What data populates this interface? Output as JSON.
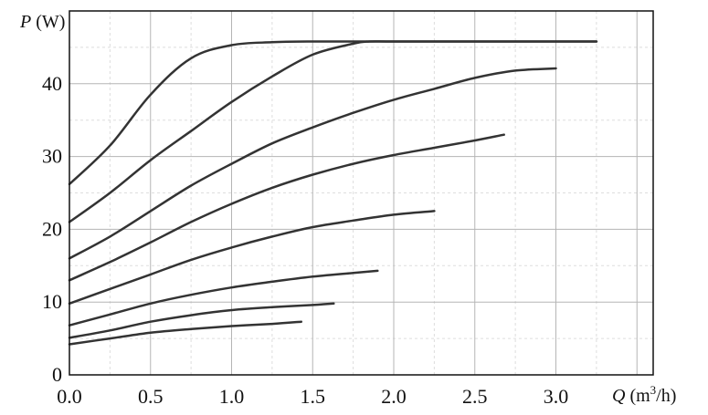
{
  "chart_data": {
    "type": "line",
    "title": "",
    "xlabel": {
      "var": "Q",
      "unit_pre": " (m",
      "unit_sup": "3",
      "unit_post": "/h)"
    },
    "ylabel": {
      "var": "P",
      "unit": " (W)"
    },
    "xlim": [
      0,
      3.6
    ],
    "ylim": [
      0,
      50
    ],
    "x_ticks": [
      0.0,
      0.5,
      1.0,
      1.5,
      2.0,
      2.5,
      3.0
    ],
    "x_tick_labels": [
      "0.0",
      "0.5",
      "1.0",
      "1.5",
      "2.0",
      "2.5",
      "3.0"
    ],
    "y_ticks": [
      0,
      10,
      20,
      30,
      40
    ],
    "y_tick_labels": [
      "0",
      "10",
      "20",
      "30",
      "40"
    ],
    "grid": true,
    "series": [
      {
        "x": [
          0,
          0.25,
          0.5,
          0.75,
          1.0,
          1.25,
          1.5,
          1.75,
          2.0,
          2.5,
          3.0,
          3.25
        ],
        "values": [
          26.2,
          31.5,
          38.5,
          43.5,
          45.3,
          45.7,
          45.8,
          45.8,
          45.8,
          45.8,
          45.8,
          45.8
        ]
      },
      {
        "x": [
          0,
          0.25,
          0.5,
          0.75,
          1.0,
          1.25,
          1.5,
          1.75,
          1.85,
          2.0,
          2.5,
          3.0,
          3.25
        ],
        "values": [
          21.0,
          25.0,
          29.5,
          33.5,
          37.5,
          41.0,
          44.0,
          45.5,
          45.8,
          45.8,
          45.8,
          45.8,
          45.8
        ]
      },
      {
        "x": [
          0,
          0.25,
          0.5,
          0.75,
          1.0,
          1.25,
          1.5,
          1.75,
          2.0,
          2.25,
          2.5,
          2.75,
          3.0
        ],
        "values": [
          16.0,
          19.0,
          22.5,
          26.0,
          29.0,
          31.8,
          34.0,
          36.0,
          37.8,
          39.3,
          40.8,
          41.8,
          42.1
        ]
      },
      {
        "x": [
          0,
          0.25,
          0.5,
          0.75,
          1.0,
          1.25,
          1.5,
          1.75,
          2.0,
          2.25,
          2.5,
          2.68
        ],
        "values": [
          13.0,
          15.5,
          18.2,
          21.0,
          23.5,
          25.7,
          27.5,
          29.0,
          30.2,
          31.2,
          32.2,
          33.0
        ]
      },
      {
        "x": [
          0,
          0.25,
          0.5,
          0.75,
          1.0,
          1.25,
          1.5,
          1.75,
          2.0,
          2.25
        ],
        "values": [
          9.8,
          11.8,
          13.8,
          15.8,
          17.5,
          19.0,
          20.3,
          21.2,
          22.0,
          22.5
        ]
      },
      {
        "x": [
          0,
          0.25,
          0.5,
          0.75,
          1.0,
          1.25,
          1.5,
          1.75,
          1.9
        ],
        "values": [
          6.8,
          8.3,
          9.8,
          11.0,
          12.0,
          12.8,
          13.5,
          14.0,
          14.3
        ]
      },
      {
        "x": [
          0,
          0.25,
          0.5,
          0.75,
          1.0,
          1.25,
          1.5,
          1.63
        ],
        "values": [
          5.1,
          6.1,
          7.3,
          8.2,
          8.9,
          9.3,
          9.6,
          9.8
        ]
      },
      {
        "x": [
          0,
          0.25,
          0.5,
          0.75,
          1.0,
          1.25,
          1.43
        ],
        "values": [
          4.2,
          5.0,
          5.8,
          6.3,
          6.7,
          7.0,
          7.3
        ]
      }
    ]
  }
}
